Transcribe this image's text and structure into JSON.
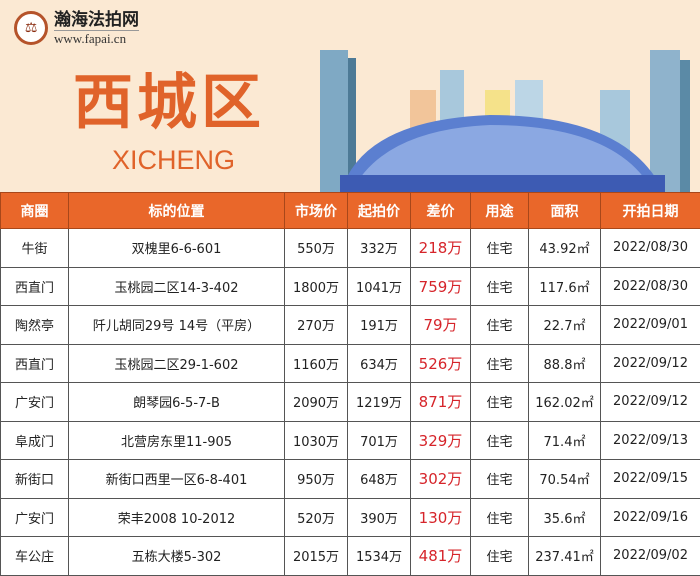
{
  "brand": {
    "name": "瀚海法拍网",
    "url": "www.fapai.cn"
  },
  "banner": {
    "title": "西城区",
    "subtitle": "XICHENG"
  },
  "colors": {
    "header": "#e9672a",
    "title": "#e0632a",
    "diff": "#d6242a",
    "background": "#fbe9d3"
  },
  "table": {
    "headers": [
      "商圈",
      "标的位置",
      "市场价",
      "起拍价",
      "差价",
      "用途",
      "面积",
      "开拍日期"
    ],
    "rows": [
      [
        "牛街",
        "双槐里6-6-601",
        "550万",
        "332万",
        "218万",
        "住宅",
        "43.92㎡",
        "2022/08/30"
      ],
      [
        "西直门",
        "玉桃园二区14-3-402",
        "1800万",
        "1041万",
        "759万",
        "住宅",
        "117.6㎡",
        "2022/08/30"
      ],
      [
        "陶然亭",
        "阡儿胡同29号 14号（平房）",
        "270万",
        "191万",
        "79万",
        "住宅",
        "22.7㎡",
        "2022/09/01"
      ],
      [
        "西直门",
        "玉桃园二区29-1-602",
        "1160万",
        "634万",
        "526万",
        "住宅",
        "88.8㎡",
        "2022/09/12"
      ],
      [
        "广安门",
        "朗琴园6-5-7-B",
        "2090万",
        "1219万",
        "871万",
        "住宅",
        "162.02㎡",
        "2022/09/12"
      ],
      [
        "阜成门",
        "北营房东里11-905",
        "1030万",
        "701万",
        "329万",
        "住宅",
        "71.4㎡",
        "2022/09/13"
      ],
      [
        "新街口",
        "新街口西里一区6-8-401",
        "950万",
        "648万",
        "302万",
        "住宅",
        "70.54㎡",
        "2022/09/15"
      ],
      [
        "广安门",
        "荣丰2008 10-2012",
        "520万",
        "390万",
        "130万",
        "住宅",
        "35.6㎡",
        "2022/09/16"
      ],
      [
        "车公庄",
        "五栋大楼5-302",
        "2015万",
        "1534万",
        "481万",
        "住宅",
        "237.41㎡",
        "2022/09/02"
      ]
    ]
  }
}
